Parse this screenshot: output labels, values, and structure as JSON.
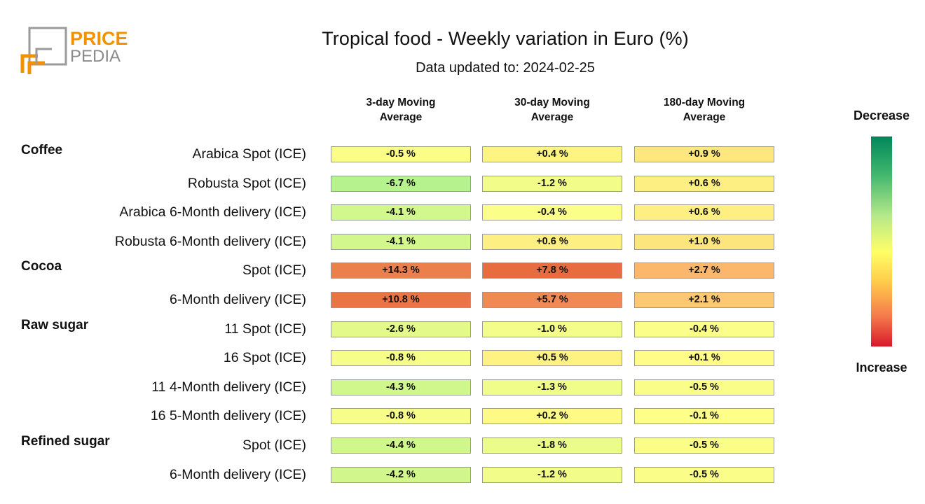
{
  "header": {
    "title": "Tropical food - Weekly variation in Euro (%)",
    "subtitle": "Data updated to: 2024-02-25",
    "logo": {
      "line1": "PRICE",
      "line2": "PEDIA"
    }
  },
  "legend": {
    "top_label": "Decrease",
    "bottom_label": "Increase"
  },
  "chart_data": {
    "type": "heatmap",
    "columns": [
      {
        "line1": "3-day Moving",
        "line2": "Average"
      },
      {
        "line1": "30-day Moving",
        "line2": "Average"
      },
      {
        "line1": "180-day Moving",
        "line2": "Average"
      }
    ],
    "groups": [
      {
        "name": "Coffee",
        "rows": [
          {
            "label": "Arabica Spot (ICE)",
            "values": [
              -0.5,
              0.4,
              0.9
            ],
            "texts": [
              "-0.5 %",
              "+0.4 %",
              "+0.9 %"
            ]
          },
          {
            "label": "Robusta Spot (ICE)",
            "values": [
              -6.7,
              -1.2,
              0.6
            ],
            "texts": [
              "-6.7 %",
              "-1.2 %",
              "+0.6 %"
            ]
          },
          {
            "label": "Arabica 6-Month delivery (ICE)",
            "values": [
              -4.1,
              -0.4,
              0.6
            ],
            "texts": [
              "-4.1 %",
              "-0.4 %",
              "+0.6 %"
            ]
          },
          {
            "label": "Robusta 6-Month delivery (ICE)",
            "values": [
              -4.1,
              0.6,
              1.0
            ],
            "texts": [
              "-4.1 %",
              "+0.6 %",
              "+1.0 %"
            ]
          }
        ]
      },
      {
        "name": "Cocoa",
        "rows": [
          {
            "label": "Spot (ICE)",
            "values": [
              14.3,
              7.8,
              2.7
            ],
            "texts": [
              "+14.3 %",
              "+7.8 %",
              "+2.7 %"
            ]
          },
          {
            "label": "6-Month delivery (ICE)",
            "values": [
              10.8,
              5.7,
              2.1
            ],
            "texts": [
              "+10.8 %",
              "+5.7 %",
              "+2.1 %"
            ]
          }
        ]
      },
      {
        "name": "Raw sugar",
        "rows": [
          {
            "label": "11 Spot (ICE)",
            "values": [
              -2.6,
              -1.0,
              -0.4
            ],
            "texts": [
              "-2.6 %",
              "-1.0 %",
              "-0.4 %"
            ]
          },
          {
            "label": "16 Spot (ICE)",
            "values": [
              -0.8,
              0.5,
              0.1
            ],
            "texts": [
              "-0.8 %",
              "+0.5 %",
              "+0.1 %"
            ]
          },
          {
            "label": "11 4-Month delivery (ICE)",
            "values": [
              -4.3,
              -1.3,
              -0.5
            ],
            "texts": [
              "-4.3 %",
              "-1.3 %",
              "-0.5 %"
            ]
          },
          {
            "label": "16 5-Month delivery (ICE)",
            "values": [
              -0.8,
              0.2,
              -0.1
            ],
            "texts": [
              "-0.8 %",
              "+0.2 %",
              "-0.1 %"
            ]
          }
        ]
      },
      {
        "name": "Refined sugar",
        "rows": [
          {
            "label": "Spot (ICE)",
            "values": [
              -4.4,
              -1.8,
              -0.5
            ],
            "texts": [
              "-4.4 %",
              "-1.8 %",
              "-0.5 %"
            ]
          },
          {
            "label": "6-Month delivery (ICE)",
            "values": [
              -4.2,
              -1.2,
              -0.5
            ],
            "texts": [
              "-4.2 %",
              "-1.2 %",
              "-0.5 %"
            ]
          }
        ]
      }
    ],
    "colors": {
      "strong_decrease": "#00875a",
      "decrease": "#b3f28e",
      "neutral": "#ffff88",
      "increase": "#fab06a",
      "strong_increase": "#e66a3e",
      "extreme_increase": "#d7192a"
    }
  }
}
